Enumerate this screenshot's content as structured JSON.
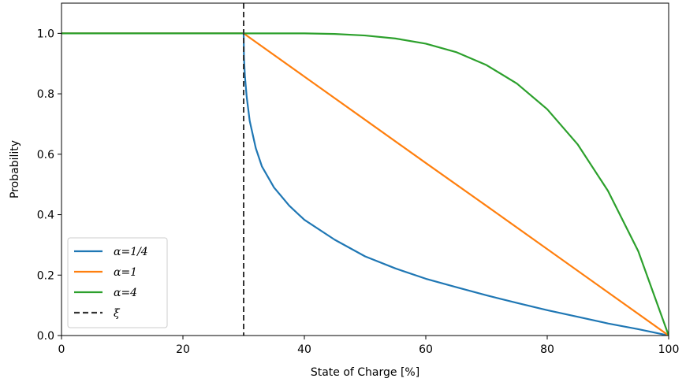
{
  "chart_data": {
    "type": "line",
    "xlabel": "State of Charge [%]",
    "ylabel": "Probability",
    "xlim": [
      0,
      100
    ],
    "ylim": [
      0,
      1.1
    ],
    "xticks": [
      0,
      20,
      40,
      60,
      80,
      100
    ],
    "yticks": [
      0.0,
      0.2,
      0.4,
      0.6,
      0.8,
      1.0
    ],
    "xtick_labels": [
      "0",
      "20",
      "40",
      "60",
      "80",
      "100"
    ],
    "ytick_labels": [
      "0.0",
      "0.2",
      "0.4",
      "0.6",
      "0.8",
      "1.0"
    ],
    "grid": false,
    "legend_position": "lower-left",
    "series": [
      {
        "name": "α=1/4",
        "color": "#1f77b4",
        "x": [
          0,
          30,
          30.05,
          30.2,
          30.5,
          31,
          32,
          33,
          35,
          37.5,
          40,
          45,
          50,
          55,
          60,
          65,
          70,
          75,
          80,
          85,
          90,
          95,
          100
        ],
        "y": [
          1.0,
          1.0,
          0.922,
          0.86,
          0.79,
          0.71,
          0.62,
          0.56,
          0.49,
          0.43,
          0.383,
          0.317,
          0.262,
          0.222,
          0.188,
          0.16,
          0.133,
          0.108,
          0.084,
          0.062,
          0.04,
          0.021,
          0.0
        ]
      },
      {
        "name": "α=1",
        "color": "#ff7f0e",
        "x": [
          0,
          30,
          40,
          50,
          60,
          70,
          80,
          90,
          100
        ],
        "y": [
          1.0,
          1.0,
          0.857,
          0.714,
          0.571,
          0.429,
          0.286,
          0.143,
          0.0
        ]
      },
      {
        "name": "α=4",
        "color": "#2ca02c",
        "x": [
          0,
          30,
          35,
          40,
          45,
          50,
          55,
          60,
          65,
          70,
          75,
          80,
          85,
          90,
          95,
          100
        ],
        "y": [
          1.0,
          1.0,
          1.0,
          1.0,
          0.998,
          0.993,
          0.983,
          0.966,
          0.938,
          0.895,
          0.834,
          0.749,
          0.633,
          0.479,
          0.279,
          0.0
        ]
      }
    ],
    "reference_line": {
      "name": "ξ",
      "x": 30,
      "color": "#333333",
      "style": "dashed"
    }
  }
}
